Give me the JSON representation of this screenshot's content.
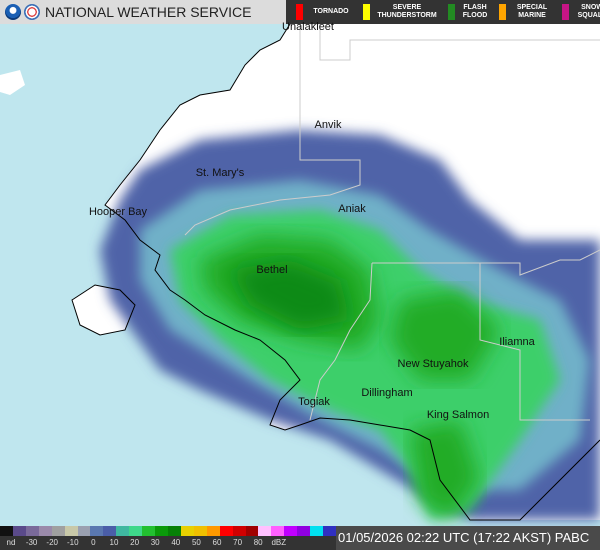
{
  "header": {
    "title": "NATIONAL WEATHER SERVICE",
    "warnings": [
      {
        "label": "TORNADO",
        "color": "#ff0000"
      },
      {
        "label": "SEVERE\nTHUNDERSTORM",
        "color": "#ffff00"
      },
      {
        "label": "FLASH\nFLOOD",
        "color": "#228b22"
      },
      {
        "label": "SPECIAL\nMARINE",
        "color": "#ffa500"
      },
      {
        "label": "SNOW\nSQUALL",
        "color": "#c71585"
      }
    ]
  },
  "legend": {
    "ticks": [
      "nd",
      "-30",
      "-20",
      "-10",
      "0",
      "10",
      "20",
      "30",
      "40",
      "50",
      "60",
      "70",
      "80",
      "dBZ"
    ],
    "colors": [
      "#111111",
      "#5a4a8a",
      "#7a6a9a",
      "#9a8aaa",
      "#a0a0a0",
      "#c8c8a8",
      "#9aa0b0",
      "#5a78b0",
      "#4a5ea8",
      "#3fb8a0",
      "#3ed88a",
      "#22c030",
      "#0a9a0a",
      "#068006",
      "#e8d000",
      "#f0c000",
      "#ff9900",
      "#ff0000",
      "#d00000",
      "#a00000",
      "#ffc0ff",
      "#ff60ff",
      "#c000ff",
      "#9000e0",
      "#00e0f0",
      "#3030c0"
    ]
  },
  "timestamp": "01/05/2026 02:22 UTC (17:22 AKST)  PABC",
  "cities": [
    {
      "name": "Unalakleet"
    },
    {
      "name": "Anvik"
    },
    {
      "name": "St. Mary's"
    },
    {
      "name": "Hooper Bay"
    },
    {
      "name": "Aniak"
    },
    {
      "name": "Bethel"
    },
    {
      "name": "Iliamna"
    },
    {
      "name": "New Stuyahok"
    },
    {
      "name": "Dillingham"
    },
    {
      "name": "Togiak"
    },
    {
      "name": "King Salmon"
    }
  ]
}
